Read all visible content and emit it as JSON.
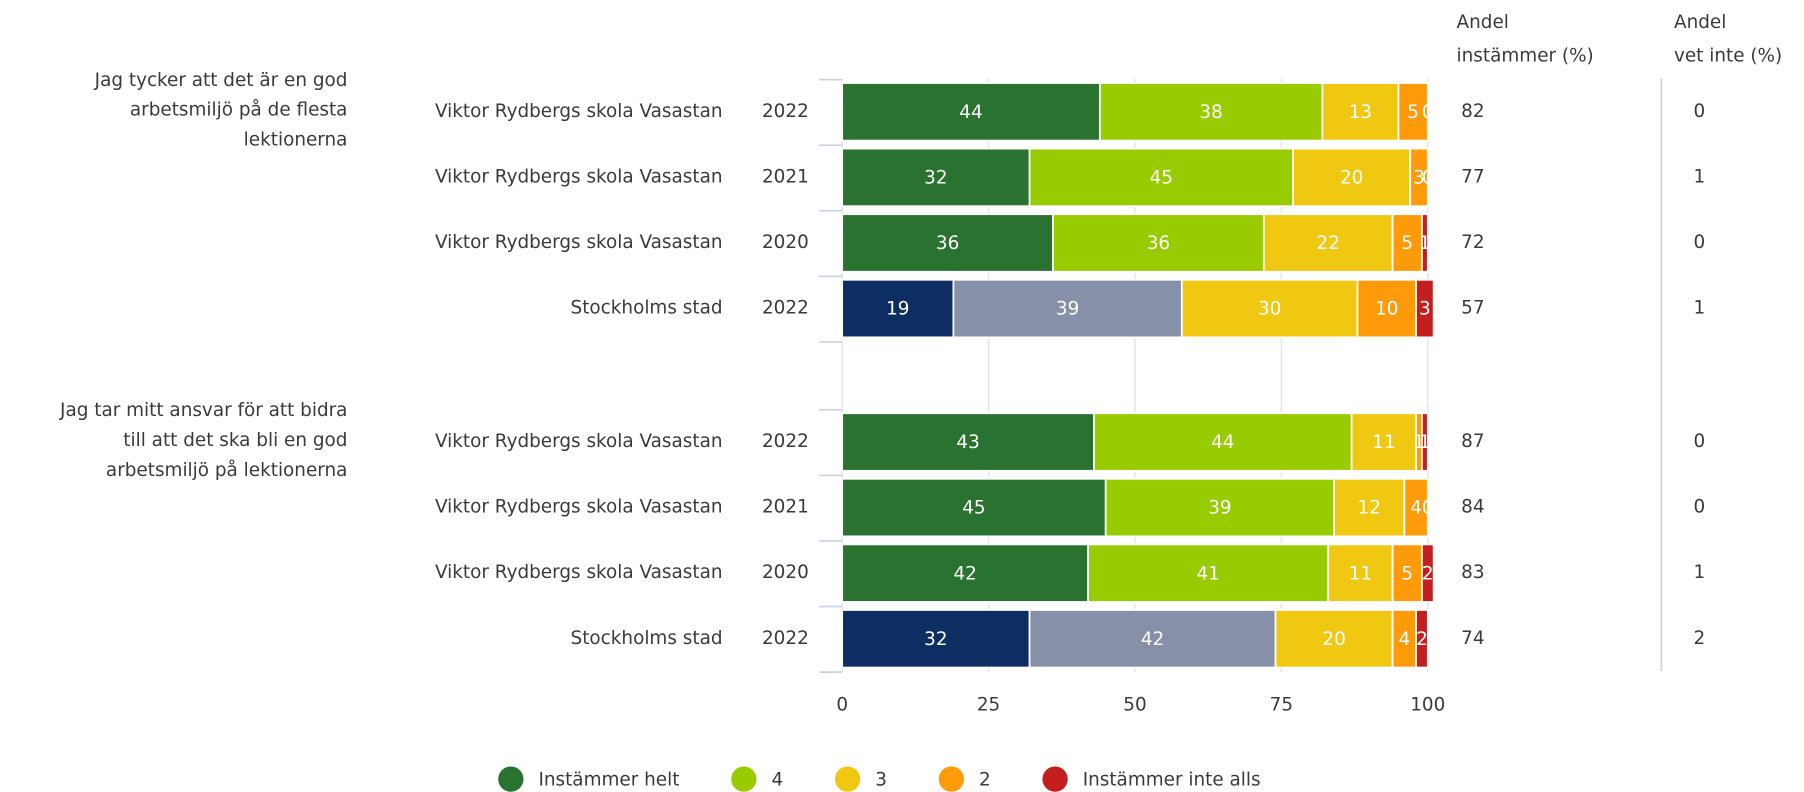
{
  "chart_data": {
    "type": "bar",
    "orientation": "horizontal",
    "stacked": true,
    "xlim": [
      0,
      100
    ],
    "xticks": [
      0,
      25,
      50,
      75,
      100
    ],
    "grid": true,
    "legend": "bottom",
    "agree_header": [
      "Andel",
      "instämmer (%)"
    ],
    "dont_know_header": [
      "Andel",
      "vet inte (%)"
    ],
    "series": [
      {
        "name": "Instämmer helt",
        "color": "#2a7230",
        "comparison_color": "#0d2e63"
      },
      {
        "name": "4",
        "color": "#99cc00",
        "comparison_color": "#8690a8"
      },
      {
        "name": "3",
        "color": "#f0c812",
        "comparison_color": "#f0c812"
      },
      {
        "name": "2",
        "color": "#ff9a0a",
        "comparison_color": "#ff9a0a"
      },
      {
        "name": "Instämmer inte alls",
        "color": "#c41e1e",
        "comparison_color": "#c41e1e"
      }
    ],
    "groups": [
      {
        "question": [
          "Jag tycker att det är en god",
          "arbetsmiljö på de flesta",
          "lektionerna"
        ],
        "rows": [
          {
            "name": "Viktor Rydbergs skola Vasastan",
            "year": "2022",
            "comparison": false,
            "values": [
              44,
              38,
              13,
              5,
              0
            ],
            "agree": 82,
            "dont_know": 0
          },
          {
            "name": "Viktor Rydbergs skola Vasastan",
            "year": "2021",
            "comparison": false,
            "values": [
              32,
              45,
              20,
              3,
              0
            ],
            "agree": 77,
            "dont_know": 1
          },
          {
            "name": "Viktor Rydbergs skola Vasastan",
            "year": "2020",
            "comparison": false,
            "values": [
              36,
              36,
              22,
              5,
              1
            ],
            "agree": 72,
            "dont_know": 0
          },
          {
            "name": "Stockholms stad",
            "year": "2022",
            "comparison": true,
            "values": [
              19,
              39,
              30,
              10,
              3
            ],
            "agree": 57,
            "dont_know": 1
          }
        ]
      },
      {
        "question": [
          "Jag tar mitt ansvar för att bidra",
          "till att det ska bli en god",
          "arbetsmiljö på lektionerna"
        ],
        "rows": [
          {
            "name": "Viktor Rydbergs skola Vasastan",
            "year": "2022",
            "comparison": false,
            "values": [
              43,
              44,
              11,
              1,
              1
            ],
            "agree": 87,
            "dont_know": 0
          },
          {
            "name": "Viktor Rydbergs skola Vasastan",
            "year": "2021",
            "comparison": false,
            "values": [
              45,
              39,
              12,
              4,
              0
            ],
            "agree": 84,
            "dont_know": 0
          },
          {
            "name": "Viktor Rydbergs skola Vasastan",
            "year": "2020",
            "comparison": false,
            "values": [
              42,
              41,
              11,
              5,
              2
            ],
            "agree": 83,
            "dont_know": 1
          },
          {
            "name": "Stockholms stad",
            "year": "2022",
            "comparison": true,
            "values": [
              32,
              42,
              20,
              4,
              2
            ],
            "agree": 74,
            "dont_know": 2
          }
        ]
      }
    ]
  }
}
